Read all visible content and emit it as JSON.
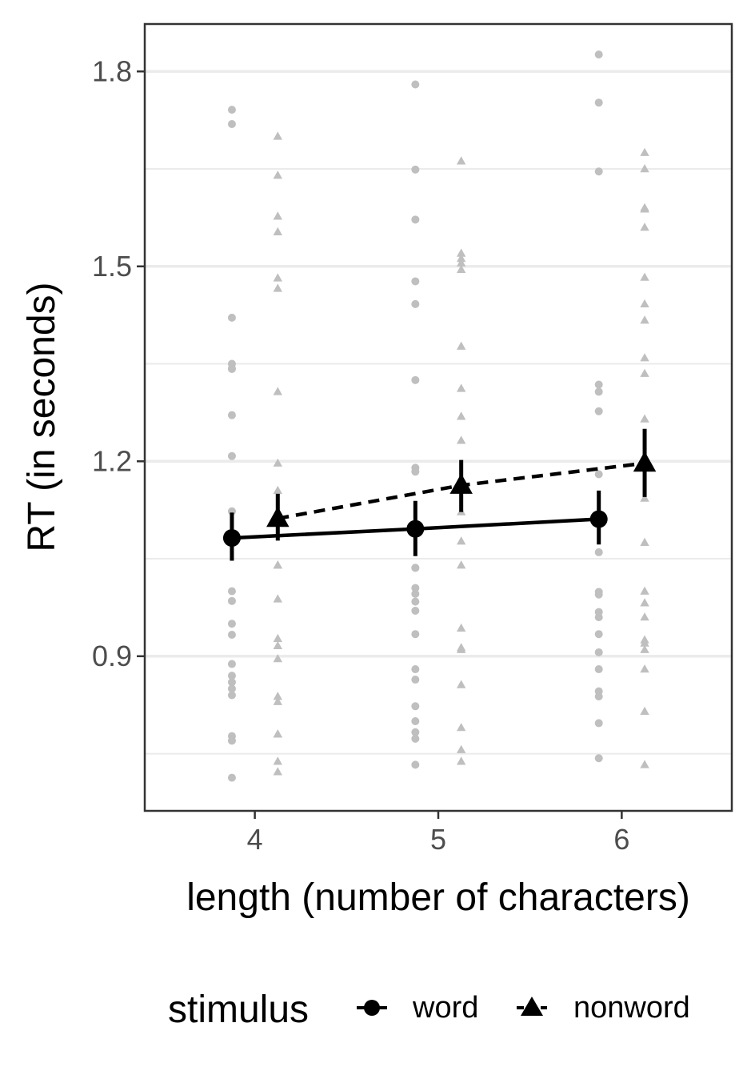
{
  "chart_data": {
    "type": "scatter",
    "xlabel": "length (number of characters)",
    "ylabel": "RT (in seconds)",
    "xlim": [
      3.4,
      6.6
    ],
    "ylim": [
      0.662,
      1.873
    ],
    "x_ticks": [
      4,
      5,
      6
    ],
    "x_tick_labels": [
      "4",
      "5",
      "6"
    ],
    "y_ticks": [
      0.9,
      1.2,
      1.5,
      1.8
    ],
    "y_tick_labels": [
      "0.9",
      "1.2",
      "1.5",
      "1.8"
    ],
    "y_minor_ticks": [
      0.75,
      1.05,
      1.35,
      1.65
    ],
    "grid": "horizontal major and minor",
    "legend": {
      "title": "stimulus",
      "position": "bottom",
      "entries": [
        "word",
        "nonword"
      ]
    },
    "colors": {
      "raw_points": "#bfbfbf",
      "summary": "#000000",
      "gridline": "#ebebeb",
      "panel_border": "#333333"
    },
    "series": [
      {
        "name": "word",
        "shape": "circle",
        "line": "solid",
        "x_offset": -0.125,
        "means": [
          {
            "x": 4,
            "y": 1.082,
            "lo": 1.047,
            "hi": 1.121
          },
          {
            "x": 5,
            "y": 1.096,
            "lo": 1.054,
            "hi": 1.139
          },
          {
            "x": 6,
            "y": 1.111,
            "lo": 1.072,
            "hi": 1.155
          }
        ],
        "raw": [
          {
            "x": 4,
            "ys": [
              1.741,
              1.719,
              1.421,
              1.35,
              1.343,
              1.342,
              1.271,
              1.208,
              1.123,
              1.0,
              0.985,
              0.95,
              0.933,
              0.888,
              0.87,
              0.86,
              0.85,
              0.84,
              0.777,
              0.77,
              0.713
            ]
          },
          {
            "x": 5,
            "ys": [
              1.78,
              1.649,
              1.572,
              1.477,
              1.442,
              1.325,
              1.19,
              1.184,
              1.036,
              1.036,
              1.005,
              0.996,
              0.984,
              0.97,
              0.934,
              0.88,
              0.864,
              0.823,
              0.8,
              0.783,
              0.773,
              0.733
            ]
          },
          {
            "x": 6,
            "ys": [
              1.826,
              1.752,
              1.646,
              1.318,
              1.307,
              1.277,
              1.18,
              1.06,
              0.999,
              0.995,
              0.968,
              0.96,
              0.934,
              0.906,
              0.88,
              0.846,
              0.838,
              0.797,
              0.743
            ]
          }
        ]
      },
      {
        "name": "nonword",
        "shape": "triangle",
        "line": "dashed",
        "x_offset": 0.125,
        "means": [
          {
            "x": 4,
            "y": 1.112,
            "lo": 1.078,
            "hi": 1.15
          },
          {
            "x": 5,
            "y": 1.163,
            "lo": 1.122,
            "hi": 1.202
          },
          {
            "x": 6,
            "y": 1.197,
            "lo": 1.145,
            "hi": 1.25
          }
        ],
        "raw": [
          {
            "x": 4,
            "ys": [
              1.7,
              1.64,
              1.577,
              1.553,
              1.482,
              1.466,
              1.307,
              1.197,
              1.155,
              1.122,
              1.04,
              1.04,
              0.988,
              0.927,
              0.916,
              0.896,
              0.838,
              0.83,
              0.78,
              0.78,
              0.738,
              0.722
            ]
          },
          {
            "x": 5,
            "ys": [
              1.662,
              1.52,
              1.512,
              1.505,
              1.495,
              1.377,
              1.312,
              1.269,
              1.232,
              1.122,
              1.077,
              1.04,
              0.943,
              0.913,
              0.91,
              0.856,
              0.79,
              0.756,
              0.738
            ]
          },
          {
            "x": 6,
            "ys": [
              1.675,
              1.65,
              1.59,
              1.588,
              1.56,
              1.483,
              1.442,
              1.417,
              1.359,
              1.335,
              1.265,
              1.143,
              1.075,
              1.0,
              0.982,
              0.96,
              0.925,
              0.92,
              0.91,
              0.88,
              0.815,
              0.733
            ]
          }
        ]
      }
    ]
  }
}
